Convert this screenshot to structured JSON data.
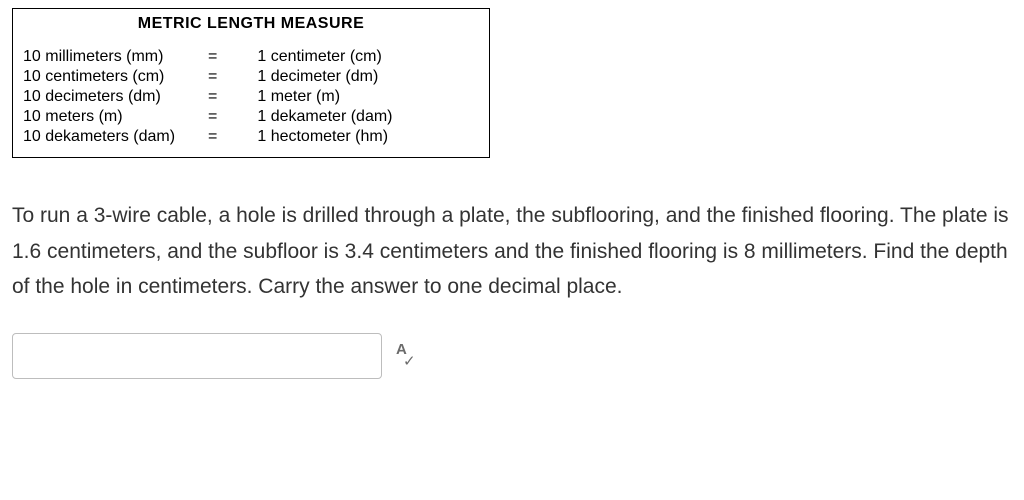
{
  "metric_box": {
    "title": "METRIC LENGTH MEASURE",
    "rows": [
      {
        "left": "10 millimeters (mm)",
        "eq": "=",
        "right": "1 centimeter (cm)"
      },
      {
        "left": "10 centimeters (cm)",
        "eq": "=",
        "right": "1 decimeter (dm)"
      },
      {
        "left": "10 decimeters (dm)",
        "eq": "=",
        "right": "1 meter (m)"
      },
      {
        "left": "10 meters (m)",
        "eq": "=",
        "right": "1 dekameter (dam)"
      },
      {
        "left": "10 dekameters (dam)",
        "eq": "=",
        "right": "1 hectometer (hm)"
      }
    ],
    "border_color": "#000000",
    "title_fontsize": 16,
    "row_fontsize": 16
  },
  "question": {
    "text": "To run a 3-wire cable, a hole is drilled through a plate, the subflooring, and the finished flooring. The plate is 1.6 centimeters, and the subfloor is 3.4 centimeters and the finished flooring is 8 millimeters. Find the depth of the hole in centimeters. Carry the answer to one decimal place.",
    "fontsize": 21,
    "color": "#333333"
  },
  "answer": {
    "value": "",
    "placeholder": ""
  },
  "icons": {
    "spellcheck_letter": "A",
    "spellcheck_check": "✓"
  },
  "colors": {
    "background": "#ffffff",
    "text": "#000000",
    "input_border": "#bdbdbd",
    "icon": "#6b6b6b"
  }
}
